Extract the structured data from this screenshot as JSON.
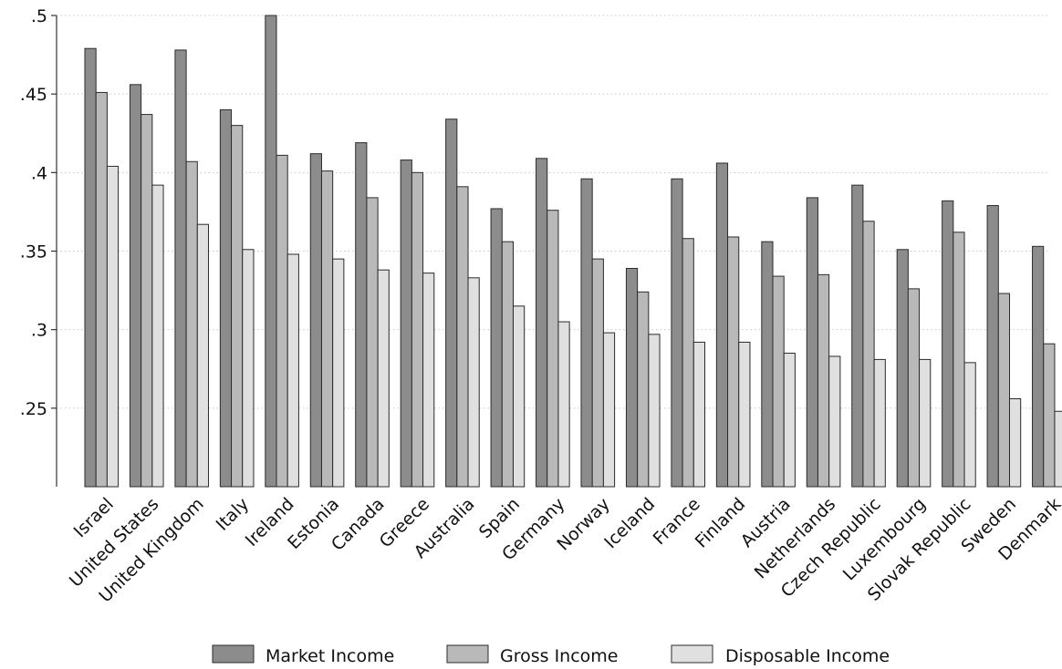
{
  "chart_data": {
    "type": "bar",
    "categories": [
      "Israel",
      "United States",
      "United Kingdom",
      "Italy",
      "Ireland",
      "Estonia",
      "Canada",
      "Greece",
      "Australia",
      "Spain",
      "Germany",
      "Norway",
      "Iceland",
      "France",
      "Finland",
      "Austria",
      "Netherlands",
      "Czech Republic",
      "Luxembourg",
      "Slovak Republic",
      "Sweden",
      "Denmark"
    ],
    "series": [
      {
        "name": "Market Income",
        "color": "#8c8c8c",
        "values": [
          0.479,
          0.456,
          0.478,
          0.44,
          0.5,
          0.412,
          0.419,
          0.408,
          0.434,
          0.377,
          0.409,
          0.396,
          0.339,
          0.396,
          0.406,
          0.356,
          0.384,
          0.392,
          0.351,
          0.382,
          0.379,
          0.353
        ]
      },
      {
        "name": "Gross Income",
        "color": "#b9b9b9",
        "values": [
          0.451,
          0.437,
          0.407,
          0.43,
          0.411,
          0.401,
          0.384,
          0.4,
          0.391,
          0.356,
          0.376,
          0.345,
          0.324,
          0.358,
          0.359,
          0.334,
          0.335,
          0.369,
          0.326,
          0.362,
          0.323,
          0.291
        ]
      },
      {
        "name": "Disposable Income",
        "color": "#e0e0e0",
        "values": [
          0.404,
          0.392,
          0.367,
          0.351,
          0.348,
          0.345,
          0.338,
          0.336,
          0.333,
          0.315,
          0.305,
          0.298,
          0.297,
          0.292,
          0.292,
          0.285,
          0.283,
          0.281,
          0.281,
          0.279,
          0.256,
          0.248
        ]
      }
    ],
    "yticks": [
      ".25",
      ".3",
      ".35",
      ".4",
      ".45",
      ".5"
    ],
    "ytick_values": [
      0.25,
      0.3,
      0.35,
      0.4,
      0.45,
      0.5
    ],
    "ylim": [
      0.2,
      0.5
    ],
    "title": "",
    "xlabel": "",
    "ylabel": "",
    "grid": "horizontal dotted",
    "legend_position": "bottom"
  }
}
